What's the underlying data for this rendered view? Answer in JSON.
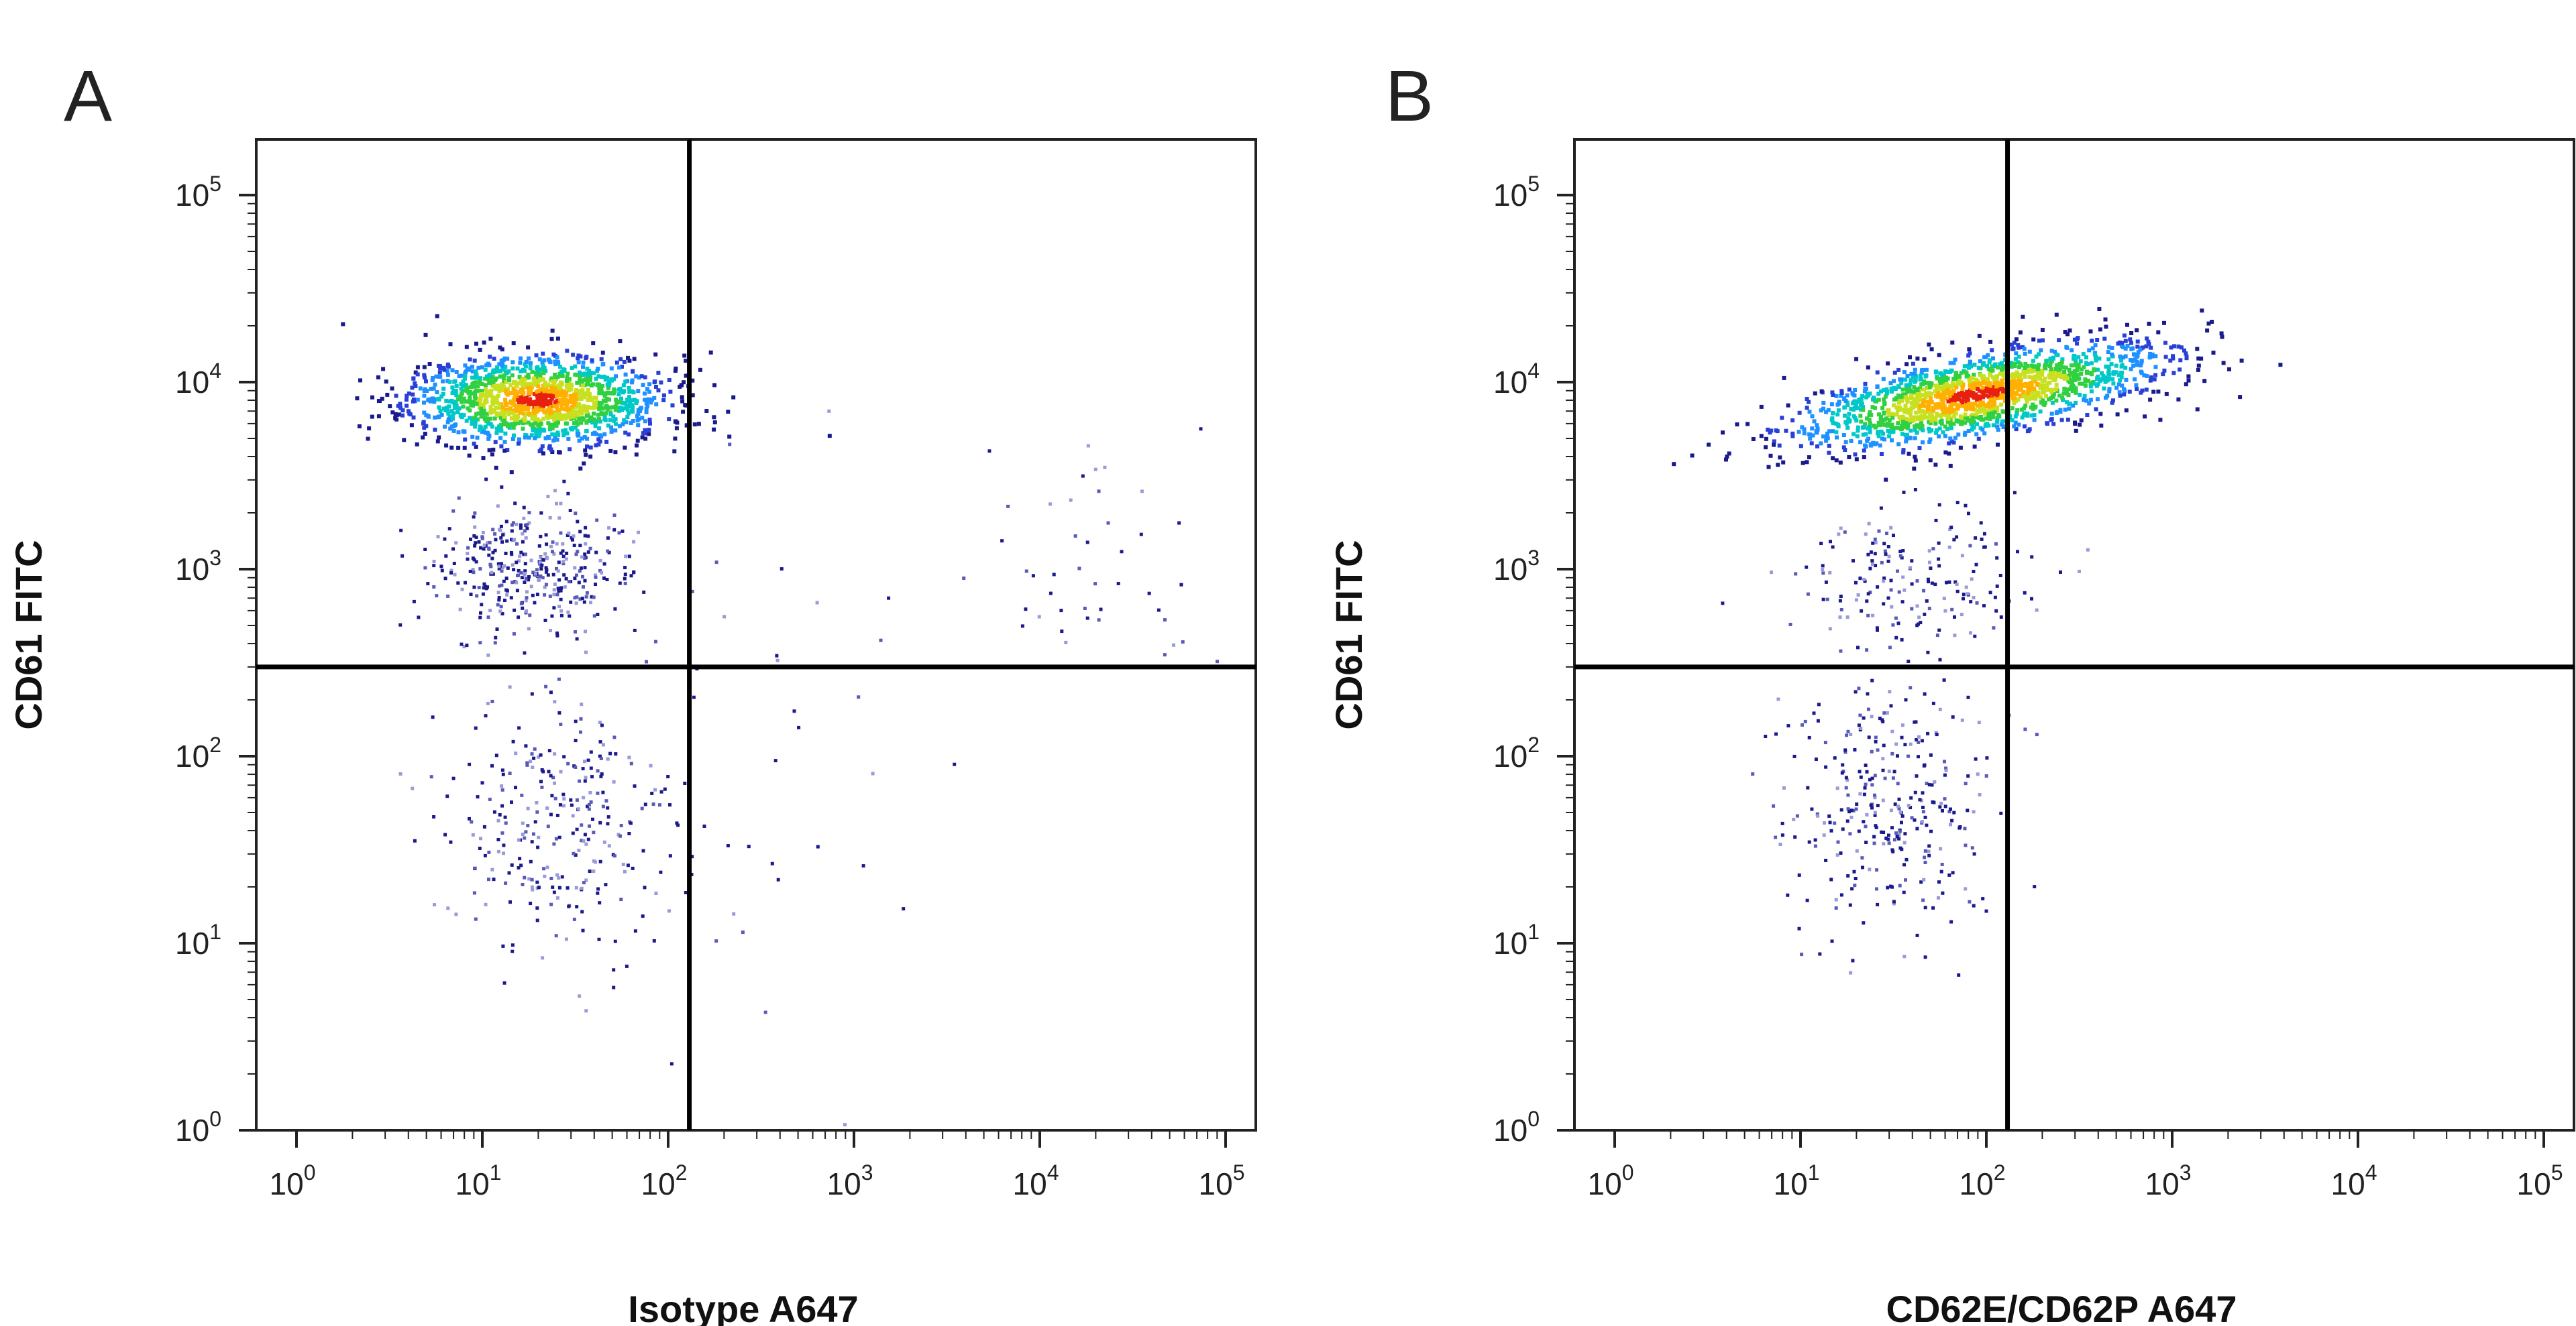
{
  "chart_data": [
    {
      "type": "scatter",
      "panel_label": "A",
      "xlabel": "Isotype A647",
      "ylabel": "CD61 FITC",
      "x_scale": "log",
      "y_scale": "log",
      "xlim": [
        1,
        100000
      ],
      "ylim": [
        1,
        100000
      ],
      "x_ticks": [
        {
          "base": "10",
          "exp": "0"
        },
        {
          "base": "10",
          "exp": "1"
        },
        {
          "base": "10",
          "exp": "2"
        },
        {
          "base": "10",
          "exp": "3"
        },
        {
          "base": "10",
          "exp": "4"
        },
        {
          "base": "10",
          "exp": "5"
        }
      ],
      "y_ticks": [
        {
          "base": "10",
          "exp": "0"
        },
        {
          "base": "10",
          "exp": "1"
        },
        {
          "base": "10",
          "exp": "2"
        },
        {
          "base": "10",
          "exp": "3"
        },
        {
          "base": "10",
          "exp": "4"
        },
        {
          "base": "10",
          "exp": "5"
        }
      ],
      "quadrant_gate": {
        "x": 130,
        "y": 300
      },
      "populations": [
        {
          "name": "",
          "center": [
            20,
            8000
          ],
          "spread": [
            0.34,
            0.12
          ],
          "count": 1500,
          "density_colored": true
        },
        {
          "name": "",
          "center": [
            18,
            1000
          ],
          "spread": [
            0.26,
            0.17
          ],
          "count": 380,
          "density_colored": false
        },
        {
          "name": "",
          "center": [
            25,
            45
          ],
          "spread": [
            0.32,
            0.34
          ],
          "count": 300,
          "density_colored": false
        },
        {
          "name": "",
          "center": [
            20000,
            800
          ],
          "spread": [
            0.32,
            0.38
          ],
          "count": 45,
          "density_colored": false
        },
        {
          "name": "",
          "center": [
            400,
            100
          ],
          "spread": [
            0.5,
            0.8
          ],
          "count": 30,
          "density_colored": false
        }
      ],
      "palette": [
        "#1a1a8c",
        "#2a3fd6",
        "#1e90ff",
        "#00c8c8",
        "#30d040",
        "#c8e020",
        "#ffb000",
        "#e82010"
      ],
      "seed": 11
    },
    {
      "type": "scatter",
      "panel_label": "B",
      "xlabel": "CD62E/CD62P A647",
      "ylabel": "CD61 FITC",
      "x_scale": "log",
      "y_scale": "log",
      "xlim": [
        1,
        100000
      ],
      "ylim": [
        1,
        100000
      ],
      "x_ticks": [
        {
          "base": "10",
          "exp": "0"
        },
        {
          "base": "10",
          "exp": "1"
        },
        {
          "base": "10",
          "exp": "2"
        },
        {
          "base": "10",
          "exp": "3"
        },
        {
          "base": "10",
          "exp": "4"
        },
        {
          "base": "10",
          "exp": "5"
        }
      ],
      "y_ticks": [
        {
          "base": "10",
          "exp": "0"
        },
        {
          "base": "10",
          "exp": "1"
        },
        {
          "base": "10",
          "exp": "2"
        },
        {
          "base": "10",
          "exp": "3"
        },
        {
          "base": "10",
          "exp": "4"
        },
        {
          "base": "10",
          "exp": "5"
        }
      ],
      "quadrant_gate": {
        "x": 130,
        "y": 300
      },
      "populations": [
        {
          "name": "",
          "center": [
            90,
            8500
          ],
          "spread": [
            0.5,
            0.11
          ],
          "count": 1700,
          "density_colored": true,
          "tilt": 0.18
        },
        {
          "name": "",
          "center": [
            40,
            900
          ],
          "spread": [
            0.32,
            0.2
          ],
          "count": 180,
          "density_colored": false
        },
        {
          "name": "",
          "center": [
            30,
            50
          ],
          "spread": [
            0.27,
            0.32
          ],
          "count": 320,
          "density_colored": false
        }
      ],
      "palette": [
        "#1a1a8c",
        "#2a3fd6",
        "#1e90ff",
        "#00c8c8",
        "#30d040",
        "#c8e020",
        "#ffb000",
        "#e82010"
      ],
      "seed": 29
    }
  ]
}
